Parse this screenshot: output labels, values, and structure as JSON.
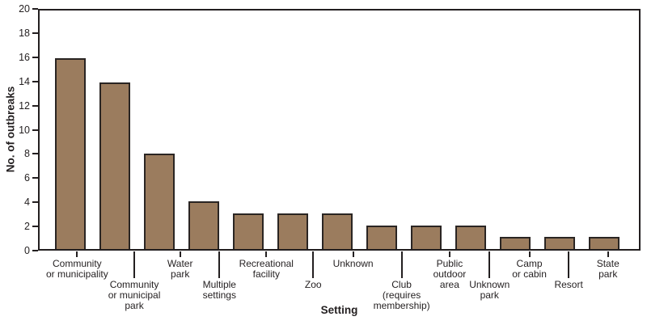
{
  "chart_data": {
    "type": "bar",
    "title": "",
    "xlabel": "Setting",
    "ylabel": "No. of outbreaks",
    "ylim": [
      0,
      20
    ],
    "ytick_step": 2,
    "yticks": [
      0,
      2,
      4,
      6,
      8,
      10,
      12,
      14,
      16,
      18,
      20
    ],
    "grid": false,
    "legend": false,
    "categories": [
      "Community or municipality",
      "Community or municipal park",
      "Water park",
      "Multiple settings",
      "Recreational facility",
      "Zoo",
      "Unknown",
      "Club (requires membership)",
      "Public outdoor area",
      "Unknown park",
      "Camp or cabin",
      "Resort",
      "State park"
    ],
    "values": [
      16,
      14,
      8,
      4,
      3,
      3,
      3,
      2,
      2,
      2,
      1,
      1,
      1
    ],
    "bars": [
      {
        "lines": [
          "Community",
          "or municipality"
        ],
        "row": 1
      },
      {
        "lines": [
          "Community",
          "or municipal",
          "park"
        ],
        "row": 2
      },
      {
        "lines": [
          "Water",
          "park"
        ],
        "row": 1
      },
      {
        "lines": [
          "Multiple",
          "settings"
        ],
        "row": 2
      },
      {
        "lines": [
          "Recreational",
          "facility"
        ],
        "row": 1
      },
      {
        "lines": [
          "Zoo"
        ],
        "row": 2
      },
      {
        "lines": [
          "Unknown"
        ],
        "row": 1
      },
      {
        "lines": [
          "Club",
          "(requires",
          "membership)"
        ],
        "row": 2
      },
      {
        "lines": [
          "Public",
          "outdoor",
          "area"
        ],
        "row": 1
      },
      {
        "lines": [
          "Unknown",
          "park"
        ],
        "row": 2
      },
      {
        "lines": [
          "Camp",
          "or cabin"
        ],
        "row": 1
      },
      {
        "lines": [
          "Resort"
        ],
        "row": 2
      },
      {
        "lines": [
          "State",
          "park"
        ],
        "row": 1
      }
    ],
    "colors": {
      "bar_fill": "#9b7c5e",
      "bar_border": "#2a2523",
      "axis": "#231f20",
      "text": "#231f20"
    }
  }
}
